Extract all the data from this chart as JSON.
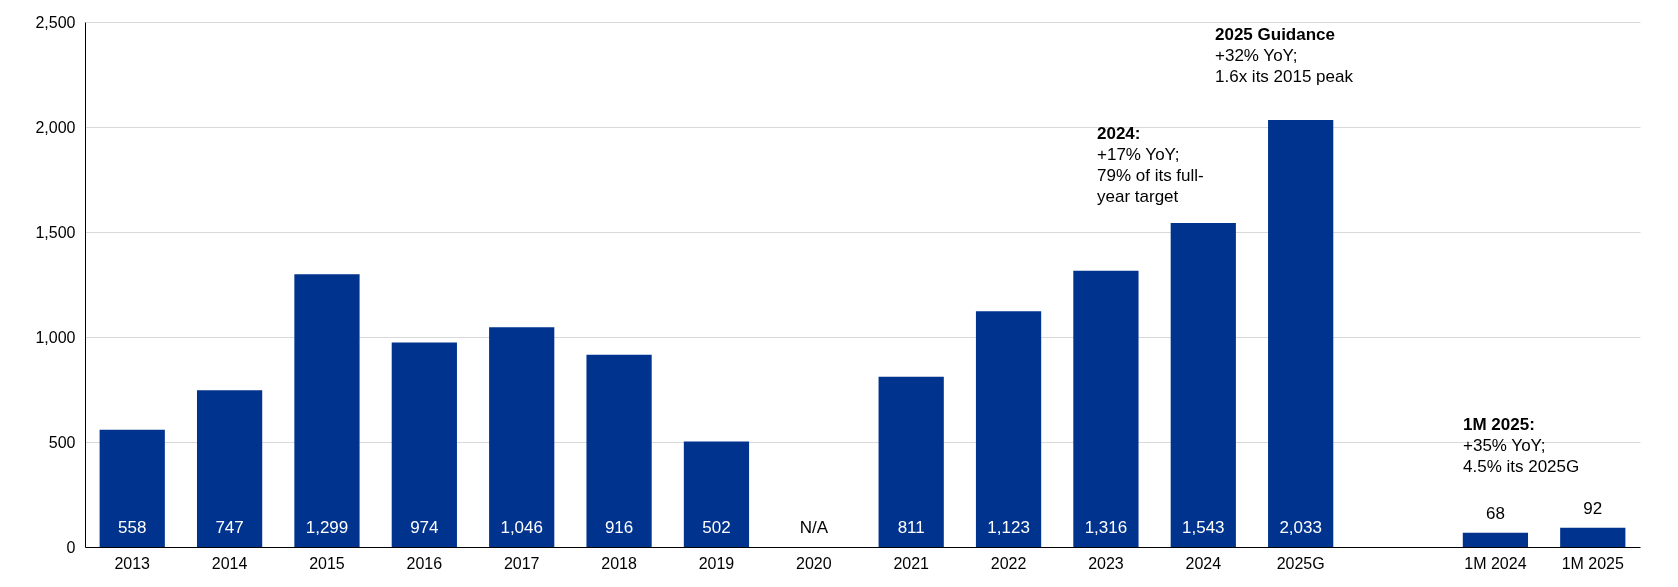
{
  "chart_data": {
    "type": "bar",
    "categories": [
      "2013",
      "2014",
      "2015",
      "2016",
      "2017",
      "2018",
      "2019",
      "2020",
      "2021",
      "2022",
      "2023",
      "2024",
      "2025G",
      null,
      "1M 2024",
      "1M 2025"
    ],
    "values": [
      558,
      747,
      1299,
      974,
      1046,
      916,
      502,
      null,
      811,
      1123,
      1316,
      1543,
      2033,
      null,
      68,
      92
    ],
    "value_labels": [
      "558",
      "747",
      "1,299",
      "974",
      "1,046",
      "916",
      "502",
      "N/A",
      "811",
      "1,123",
      "1,316",
      "1,543",
      "2,033",
      null,
      "68",
      "92"
    ],
    "color": "#00338d",
    "ylim": [
      0,
      2500
    ],
    "yticks": [
      0,
      500,
      {
        "value": 1000,
        "label": "1,000"
      },
      {
        "value": 1500,
        "label": "1,500"
      },
      {
        "value": 2000,
        "label": "2,000"
      },
      {
        "value": 2500,
        "label": "2,500"
      }
    ],
    "grid": "y",
    "annotations": [
      "2025 Guidance\n+32% YoY;\n1.6x its 2015 peak",
      "2024:\n+17% YoY;\n79% of its full-\nyear target",
      "1M 2025:\n+35% YoY;\n4.5% its 2025G"
    ]
  }
}
